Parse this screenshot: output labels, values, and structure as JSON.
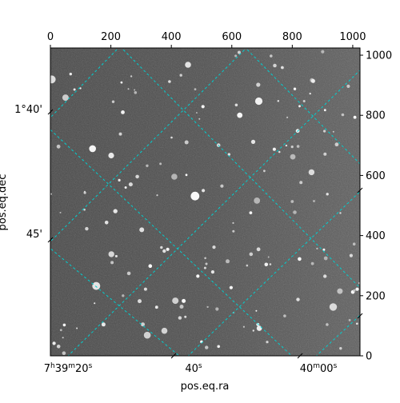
{
  "chart_data": {
    "type": "image",
    "xlabel": "pos.eq.ra",
    "ylabel": "pos.eq.dec",
    "pixel_axes": {
      "x": {
        "range": [
          0,
          1024
        ],
        "ticks": [
          0,
          200,
          400,
          600,
          800,
          1000
        ]
      },
      "y": {
        "range": [
          0,
          1024
        ],
        "ticks": [
          0,
          200,
          400,
          600,
          800,
          1000
        ]
      }
    },
    "ra_tick_labels": [
      {
        "base": "7",
        "sup1": "h",
        "mid": "39",
        "sup2": "m",
        "last": "20",
        "sup3": "s"
      },
      {
        "base": "",
        "sup1": "",
        "mid": "",
        "sup2": "",
        "last": "40",
        "sup3": "s"
      },
      {
        "base": "",
        "sup1": "",
        "mid": "40",
        "sup2": "m",
        "last": "00",
        "sup3": "s"
      }
    ],
    "dec_tick_labels": [
      "1°40'",
      "45'"
    ],
    "grid": true,
    "grid_color": "#00d0d0",
    "image_colormap": "gray",
    "coordinate_grid_lines": [
      {
        "from": [
          0,
          0
        ],
        "to": [
          0,
          0
        ]
      }
    ]
  }
}
